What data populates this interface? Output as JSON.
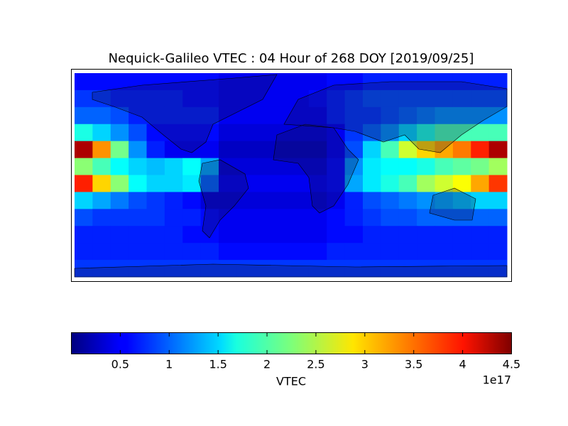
{
  "chart_data": {
    "type": "heatmap",
    "title": "Nequick-Galileo VTEC : 04 Hour of 268 DOY [2019/09/25]",
    "colormap": "jet",
    "xlim": [
      -180,
      180
    ],
    "ylim": [
      -90,
      90
    ],
    "x": [
      -172.5,
      -157.5,
      -142.5,
      -127.5,
      -112.5,
      -97.5,
      -82.5,
      -67.5,
      -52.5,
      -37.5,
      -22.5,
      -7.5,
      7.5,
      22.5,
      37.5,
      52.5,
      67.5,
      82.5,
      97.5,
      112.5,
      127.5,
      142.5,
      157.5,
      172.5
    ],
    "y": [
      82.5,
      67.5,
      52.5,
      37.5,
      22.5,
      7.5,
      -7.5,
      -22.5,
      -37.5,
      -52.5,
      -67.5,
      -82.5
    ],
    "values": [
      [
        0.6,
        0.6,
        0.6,
        0.6,
        0.6,
        0.6,
        0.6,
        0.6,
        0.5,
        0.5,
        0.5,
        0.5,
        0.5,
        0.5,
        0.6,
        0.6,
        0.7,
        0.7,
        0.7,
        0.7,
        0.7,
        0.7,
        0.7,
        0.7
      ],
      [
        0.8,
        0.8,
        0.7,
        0.7,
        0.7,
        0.7,
        0.6,
        0.6,
        0.5,
        0.5,
        0.5,
        0.5,
        0.5,
        0.6,
        0.7,
        0.8,
        0.9,
        0.9,
        0.9,
        0.9,
        0.9,
        0.9,
        0.9,
        0.9
      ],
      [
        1.0,
        1.0,
        0.9,
        0.7,
        0.7,
        0.7,
        0.7,
        0.7,
        0.5,
        0.5,
        0.5,
        0.5,
        0.5,
        0.5,
        0.7,
        0.8,
        0.8,
        0.9,
        1.0,
        1.1,
        1.2,
        1.2,
        1.2,
        1.2
      ],
      [
        1.8,
        1.5,
        1.2,
        0.9,
        0.6,
        0.6,
        0.6,
        0.6,
        0.4,
        0.4,
        0.4,
        0.4,
        0.4,
        0.4,
        0.5,
        0.8,
        1.0,
        1.2,
        1.5,
        1.8,
        2.0,
        2.0,
        2.0,
        2.0
      ],
      [
        4.3,
        3.3,
        2.2,
        1.2,
        0.7,
        0.5,
        0.5,
        0.5,
        0.3,
        0.3,
        0.3,
        0.3,
        0.3,
        0.3,
        0.5,
        0.9,
        1.5,
        2.0,
        2.6,
        3.0,
        3.2,
        3.4,
        3.8,
        4.3
      ],
      [
        2.3,
        2.0,
        1.7,
        1.5,
        1.4,
        1.5,
        1.7,
        1.3,
        0.4,
        0.4,
        0.4,
        0.4,
        0.4,
        0.4,
        0.6,
        1.2,
        1.6,
        1.7,
        1.7,
        1.8,
        2.0,
        2.1,
        2.2,
        2.4
      ],
      [
        3.8,
        3.0,
        2.3,
        1.7,
        1.5,
        1.5,
        1.6,
        1.0,
        0.5,
        0.5,
        0.5,
        0.5,
        0.5,
        0.5,
        0.6,
        1.3,
        1.6,
        1.8,
        2.0,
        2.4,
        2.6,
        2.8,
        3.2,
        3.7
      ],
      [
        1.5,
        1.3,
        1.1,
        0.9,
        0.8,
        0.7,
        0.6,
        0.4,
        0.4,
        0.4,
        0.4,
        0.4,
        0.4,
        0.4,
        0.5,
        0.7,
        0.9,
        1.0,
        1.1,
        1.2,
        1.3,
        1.4,
        1.5,
        1.5
      ],
      [
        0.9,
        0.8,
        0.8,
        0.8,
        0.8,
        0.7,
        0.7,
        0.6,
        0.5,
        0.5,
        0.5,
        0.5,
        0.5,
        0.5,
        0.6,
        0.7,
        0.8,
        0.9,
        0.9,
        1.0,
        1.0,
        1.0,
        1.0,
        1.0
      ],
      [
        0.7,
        0.7,
        0.7,
        0.7,
        0.7,
        0.7,
        0.6,
        0.6,
        0.5,
        0.5,
        0.5,
        0.5,
        0.5,
        0.5,
        0.6,
        0.6,
        0.7,
        0.7,
        0.7,
        0.7,
        0.7,
        0.7,
        0.7,
        0.7
      ],
      [
        0.7,
        0.7,
        0.7,
        0.7,
        0.7,
        0.7,
        0.7,
        0.7,
        0.6,
        0.6,
        0.6,
        0.6,
        0.6,
        0.6,
        0.7,
        0.7,
        0.7,
        0.7,
        0.7,
        0.7,
        0.7,
        0.7,
        0.7,
        0.7
      ],
      [
        0.8,
        0.8,
        0.8,
        0.8,
        0.8,
        0.8,
        0.8,
        0.8,
        0.8,
        0.8,
        0.8,
        0.8,
        0.8,
        0.8,
        0.8,
        0.8,
        0.8,
        0.8,
        0.8,
        0.8,
        0.8,
        0.8,
        0.8,
        0.8
      ]
    ],
    "colorbar": {
      "label": "VTEC",
      "lim": [
        0,
        4.5
      ],
      "ticks": [
        0.5,
        1.0,
        1.5,
        2.0,
        2.5,
        3.0,
        3.5,
        4.0,
        4.5
      ],
      "offset_label": "1e17"
    }
  }
}
